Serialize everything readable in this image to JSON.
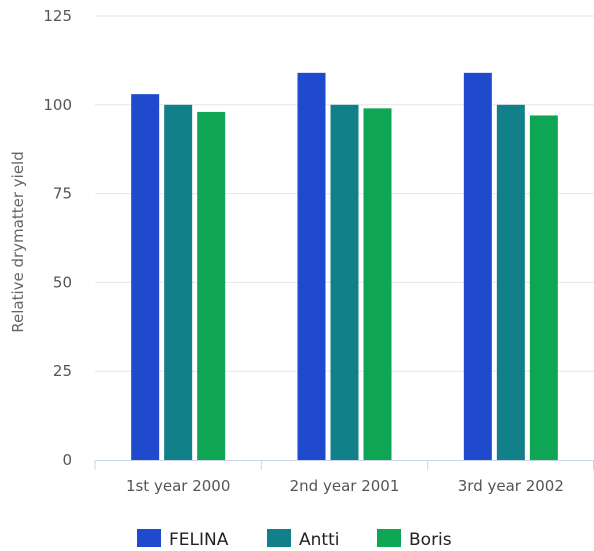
{
  "chart_data": {
    "type": "bar",
    "categories": [
      "1st year 2000",
      "2nd year 2001",
      "3rd year 2002"
    ],
    "series": [
      {
        "name": "FELINA",
        "color": "#1f4acd",
        "values": [
          103,
          109,
          109
        ]
      },
      {
        "name": "Antti",
        "color": "#128088",
        "values": [
          100,
          100,
          100
        ]
      },
      {
        "name": "Boris",
        "color": "#0ea555",
        "values": [
          98,
          99,
          97
        ]
      }
    ],
    "title": "",
    "xlabel": "",
    "ylabel": "Relative drymatter yield",
    "ylim": [
      0,
      125
    ],
    "yticks": [
      0,
      25,
      50,
      75,
      100,
      125
    ],
    "grid": true,
    "legend_position": "bottom"
  }
}
